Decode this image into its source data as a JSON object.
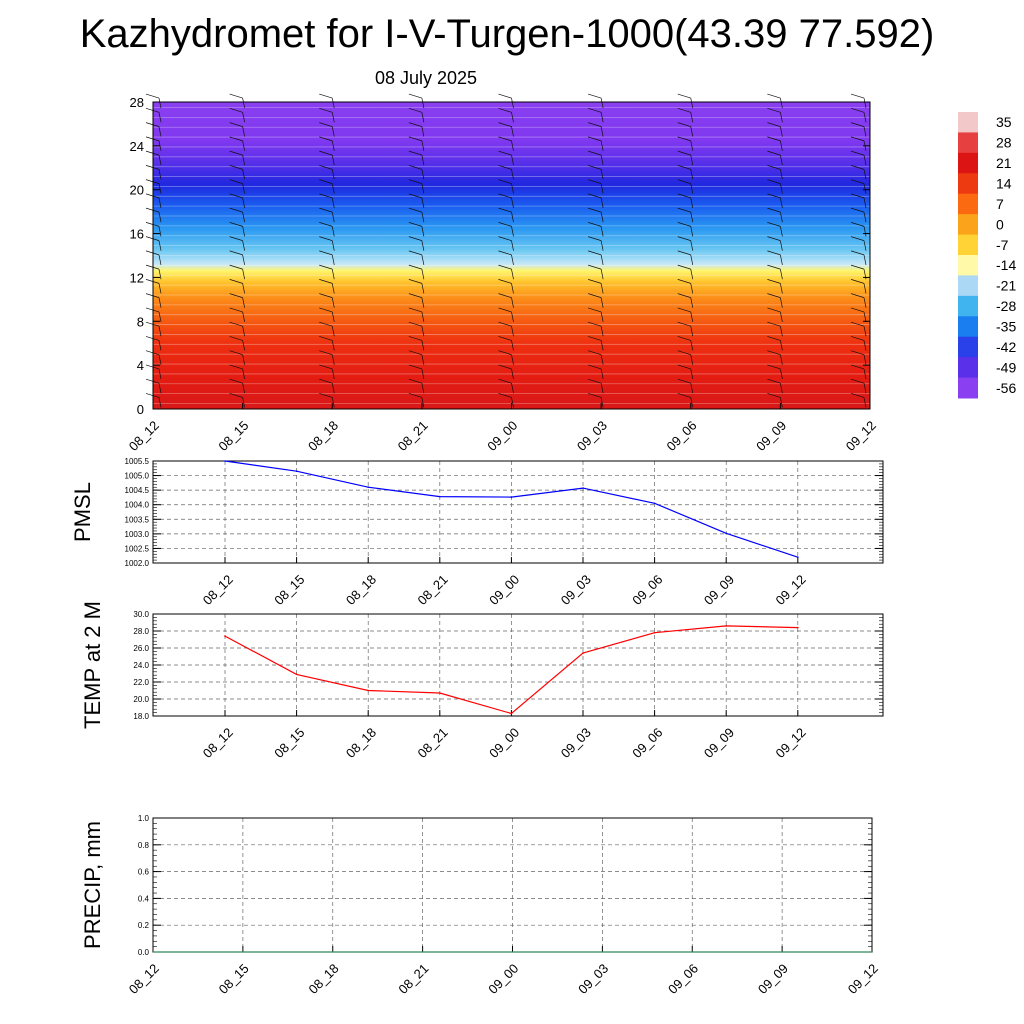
{
  "title": "Kazhydromet for I-V-Turgen-1000(43.39 77.592)",
  "subtitle": "08 July 2025",
  "chart_data": [
    {
      "type": "heatmap",
      "name": "vertical-profile",
      "xlabels": [
        "08_12",
        "08_15",
        "08_18",
        "08_21",
        "09_00",
        "09_03",
        "09_06",
        "09_09",
        "09_12"
      ],
      "yticks": [
        "0",
        "4",
        "8",
        "12",
        "16",
        "20",
        "24",
        "28"
      ],
      "ylim": [
        0,
        28
      ],
      "colorbar": {
        "labels": [
          "35",
          "28",
          "21",
          "14",
          "7",
          "0",
          "-7",
          "-14",
          "-21",
          "-28",
          "-35",
          "-42",
          "-49",
          "-56"
        ],
        "colors": [
          "#f2c8c8",
          "#e64040",
          "#dc1414",
          "#ee3a10",
          "#fb6a10",
          "#fca31c",
          "#ffd335",
          "#fff9a8",
          "#aad8f5",
          "#40b4ef",
          "#1a7ef0",
          "#2a40e8",
          "#5a30e8",
          "#8a40f0"
        ]
      }
    },
    {
      "type": "line",
      "name": "pmsl",
      "ylabel": "PMSL",
      "x": [
        "08_12",
        "08_15",
        "08_18",
        "08_21",
        "09_00",
        "09_03",
        "09_06",
        "09_09",
        "09_12"
      ],
      "values": [
        1005.5,
        1005.15,
        1004.6,
        1004.28,
        1004.26,
        1004.57,
        1004.05,
        1003.02,
        1002.2
      ],
      "ylim": [
        1002.0,
        1005.5
      ],
      "yticks": [
        "1002.0",
        "1002.5",
        "1003.0",
        "1003.5",
        "1004.0",
        "1004.5",
        "1005.0",
        "1005.5"
      ],
      "color": "#0000ff"
    },
    {
      "type": "line",
      "name": "temp-2m",
      "ylabel": "TEMP at 2 M",
      "x": [
        "08_12",
        "08_15",
        "08_18",
        "08_21",
        "09_00",
        "09_03",
        "09_06",
        "09_09",
        "09_12"
      ],
      "values": [
        27.4,
        22.9,
        21.0,
        20.7,
        18.3,
        25.4,
        27.8,
        28.6,
        28.4
      ],
      "ylim": [
        18.0,
        30.0
      ],
      "yticks": [
        "18.0",
        "20.0",
        "22.0",
        "24.0",
        "26.0",
        "28.0",
        "30.0"
      ],
      "color": "#ff0000"
    },
    {
      "type": "line",
      "name": "precip",
      "ylabel": "PRECIP, mm",
      "x": [
        "08_12",
        "08_15",
        "08_18",
        "08_21",
        "09_00",
        "09_03",
        "09_06",
        "09_09",
        "09_12"
      ],
      "values": [
        0,
        0,
        0,
        0,
        0,
        0,
        0,
        0,
        0
      ],
      "ylim": [
        0.0,
        1.0
      ],
      "yticks": [
        "0.0",
        "0.2",
        "0.4",
        "0.6",
        "0.8",
        "1.0"
      ],
      "color": "#2e8b57"
    }
  ]
}
